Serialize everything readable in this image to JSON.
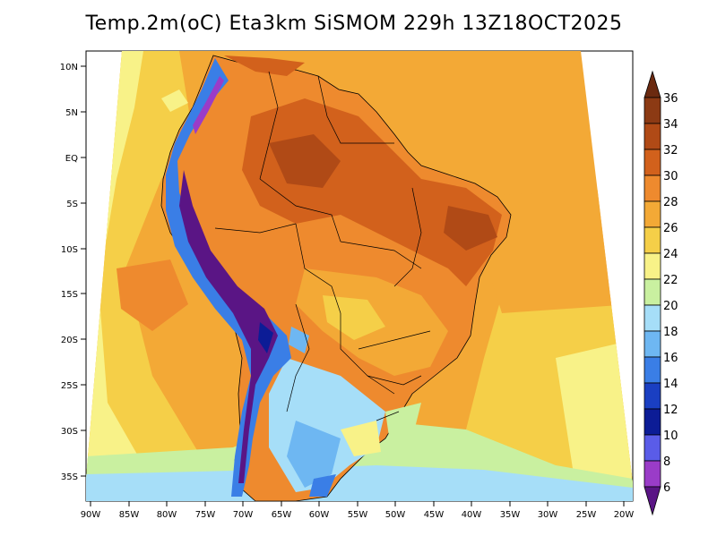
{
  "title": "Temp.2m(oC) Eta3km SiSMOM 229h 13Z18OCT2025",
  "map": {
    "lat_labels": [
      "10N",
      "5N",
      "EQ",
      "5S",
      "10S",
      "15S",
      "20S",
      "25S",
      "30S",
      "35S"
    ],
    "lon_labels": [
      "90W",
      "85W",
      "80W",
      "75W",
      "70W",
      "65W",
      "60W",
      "55W",
      "50W",
      "45W",
      "40W",
      "35W",
      "30W",
      "25W",
      "20W"
    ],
    "variable": "2 m air temperature",
    "units": "oC",
    "region": "South America"
  },
  "colorbar": {
    "labels": [
      "36",
      "34",
      "32",
      "30",
      "28",
      "26",
      "24",
      "22",
      "20",
      "18",
      "16",
      "14",
      "12",
      "10",
      "8",
      "6"
    ],
    "colors": [
      "#6b2a10",
      "#8c3a14",
      "#b04a16",
      "#d2611c",
      "#ee8a2e",
      "#f3a936",
      "#f5cf48",
      "#f8f288",
      "#c9f0a0",
      "#a6def8",
      "#6eb7f2",
      "#3a7ee6",
      "#1a3fc2",
      "#0c1c96",
      "#5a5ce8",
      "#9a3cc8",
      "#5a1585"
    ]
  }
}
